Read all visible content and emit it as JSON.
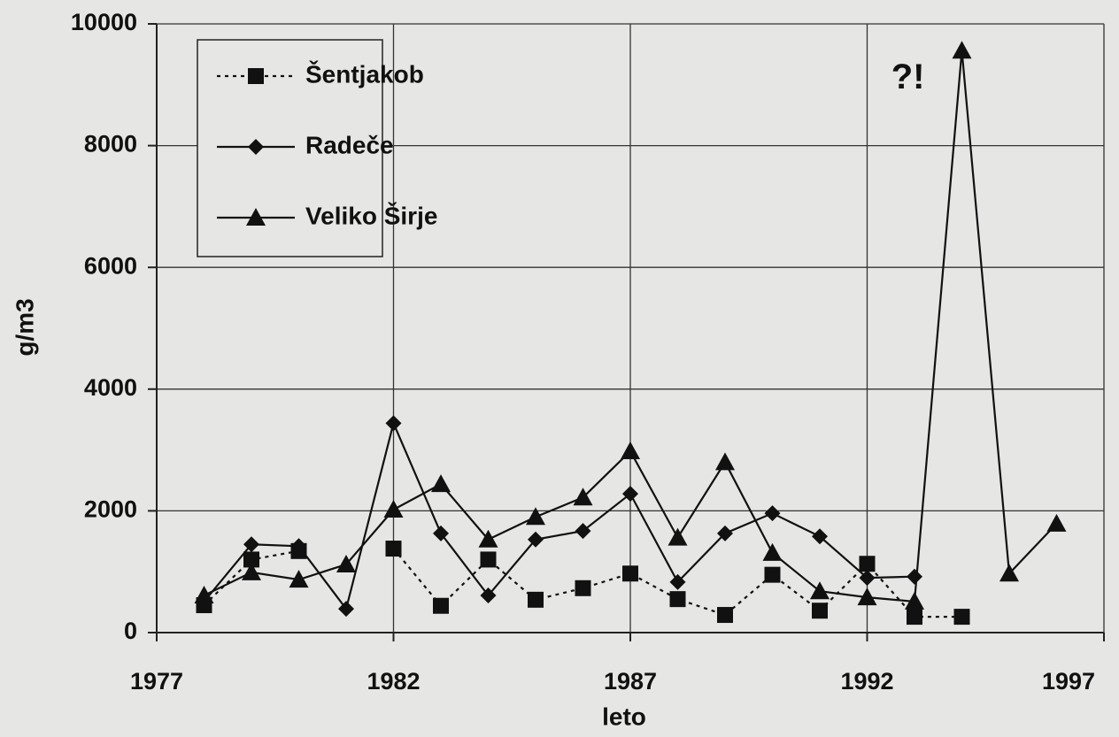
{
  "chart_data": {
    "type": "line",
    "x": [
      1978,
      1979,
      1980,
      1981,
      1982,
      1983,
      1984,
      1985,
      1986,
      1987,
      1988,
      1989,
      1990,
      1991,
      1992,
      1993,
      1994,
      1995,
      1996
    ],
    "series": [
      {
        "name": "Šentjakob",
        "color": "#111111",
        "linestyle": "dotted",
        "marker": "square",
        "values": [
          450,
          1200,
          1340,
          null,
          1380,
          440,
          1200,
          540,
          730,
          970,
          550,
          290,
          950,
          360,
          1130,
          260,
          260,
          null,
          null
        ]
      },
      {
        "name": "Radeče",
        "color": "#111111",
        "linestyle": "solid",
        "marker": "diamond",
        "values": [
          510,
          1450,
          1420,
          390,
          3440,
          1630,
          610,
          1530,
          1670,
          2280,
          830,
          1630,
          1960,
          1580,
          900,
          920,
          null,
          null,
          null
        ]
      },
      {
        "name": "Veliko Širje",
        "color": "#111111",
        "linestyle": "solid",
        "marker": "triangle",
        "values": [
          610,
          990,
          870,
          1120,
          2020,
          2440,
          1530,
          1900,
          2220,
          2980,
          1560,
          2800,
          1310,
          680,
          580,
          510,
          9560,
          970,
          1790
        ]
      }
    ],
    "xlabel": "leto",
    "ylabel": "g/m3",
    "xlim": [
      1977,
      1997
    ],
    "xticks": [
      1977,
      1982,
      1987,
      1992,
      1997
    ],
    "ylim": [
      0,
      10000
    ],
    "yticks": [
      0,
      2000,
      4000,
      6000,
      8000,
      10000
    ],
    "grid": true,
    "legend": "upper left",
    "annotation": "?!"
  }
}
